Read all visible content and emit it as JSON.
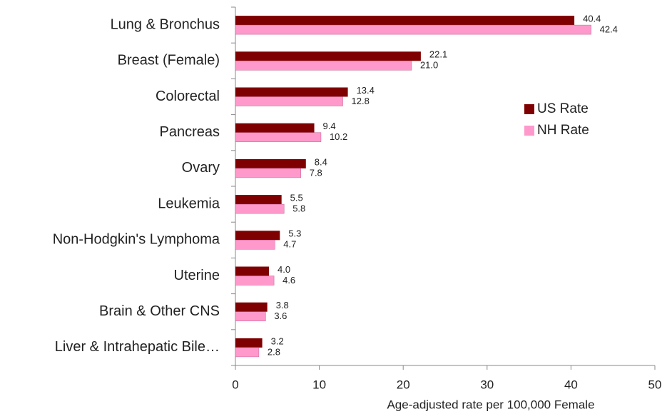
{
  "chart_data": {
    "type": "hbar",
    "x_label": "Age-adjusted rate per 100,000 Female",
    "categories": [
      "Lung & Bronchus",
      "Breast (Female)",
      "Colorectal",
      "Pancreas",
      "Ovary",
      "Leukemia",
      "Non-Hodgkin's Lymphoma",
      "Uterine",
      "Brain & Other CNS",
      "Liver & Intrahepatic Bile…"
    ],
    "series": [
      {
        "name": "US Rate",
        "color": "#7f0000",
        "values": [
          40.4,
          22.1,
          13.4,
          9.4,
          8.4,
          5.5,
          5.3,
          4.0,
          3.8,
          3.2
        ],
        "value_labels": [
          "40.4",
          "22.1",
          "13.4",
          "9.4",
          "8.4",
          "5.5",
          "5.3",
          "4.0",
          "3.8",
          "3.2"
        ]
      },
      {
        "name": "NH Rate",
        "color": "#ff99cc",
        "values": [
          42.4,
          21.0,
          12.8,
          10.2,
          7.8,
          5.8,
          4.7,
          4.6,
          3.6,
          2.8
        ],
        "value_labels": [
          "42.4",
          "21.0",
          "12.8",
          "10.2",
          "7.8",
          "5.8",
          "4.7",
          "4.6",
          "3.6",
          "2.8"
        ]
      }
    ],
    "xlim": [
      0,
      50
    ],
    "xticks": [
      0,
      10,
      20,
      30,
      40,
      50
    ],
    "grid": false,
    "legend": "right"
  }
}
